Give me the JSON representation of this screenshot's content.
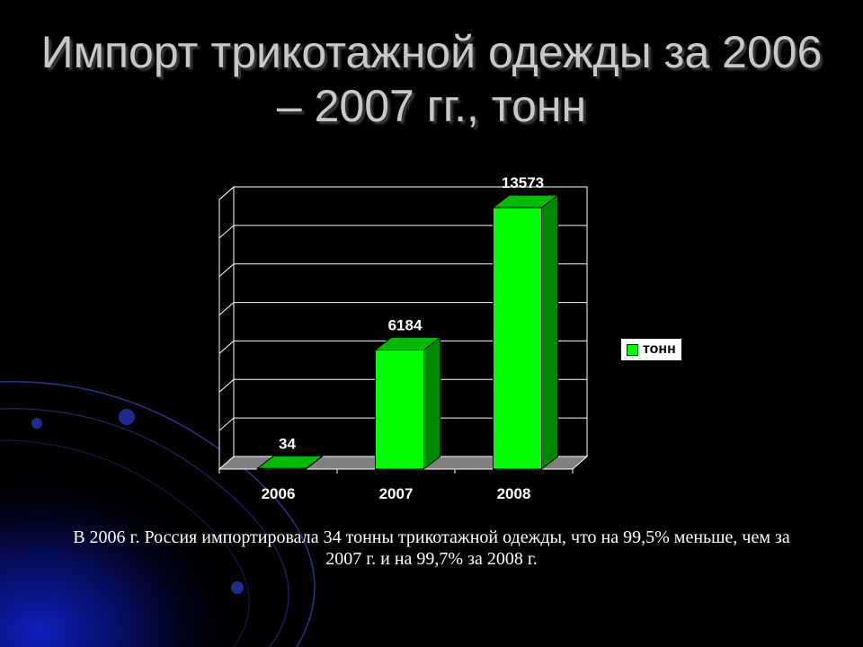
{
  "slide": {
    "title": "Импорт трикотажной одежды за 2006 – 2007 гг., тонн",
    "caption": "В 2006 г. Россия импортировала 34 тонны трикотажной одежды, что на 99,5% меньше, чем за 2007 г. и на 99,7% за 2008 г."
  },
  "chart_data": {
    "type": "bar",
    "style": "3d-column",
    "categories": [
      "2006",
      "2007",
      "2008"
    ],
    "series": [
      {
        "name": "тонн",
        "values": [
          34,
          6184,
          13573
        ]
      }
    ],
    "data_labels": [
      "34",
      "6184",
      "13573"
    ],
    "ylim": [
      0,
      14000
    ],
    "grid": true,
    "legend": "right",
    "colors": {
      "bar_front": "#00ff00",
      "bar_side": "#008800",
      "bar_top": "#00bb00",
      "plot_wall": "#000000",
      "floor": "#808080"
    }
  }
}
